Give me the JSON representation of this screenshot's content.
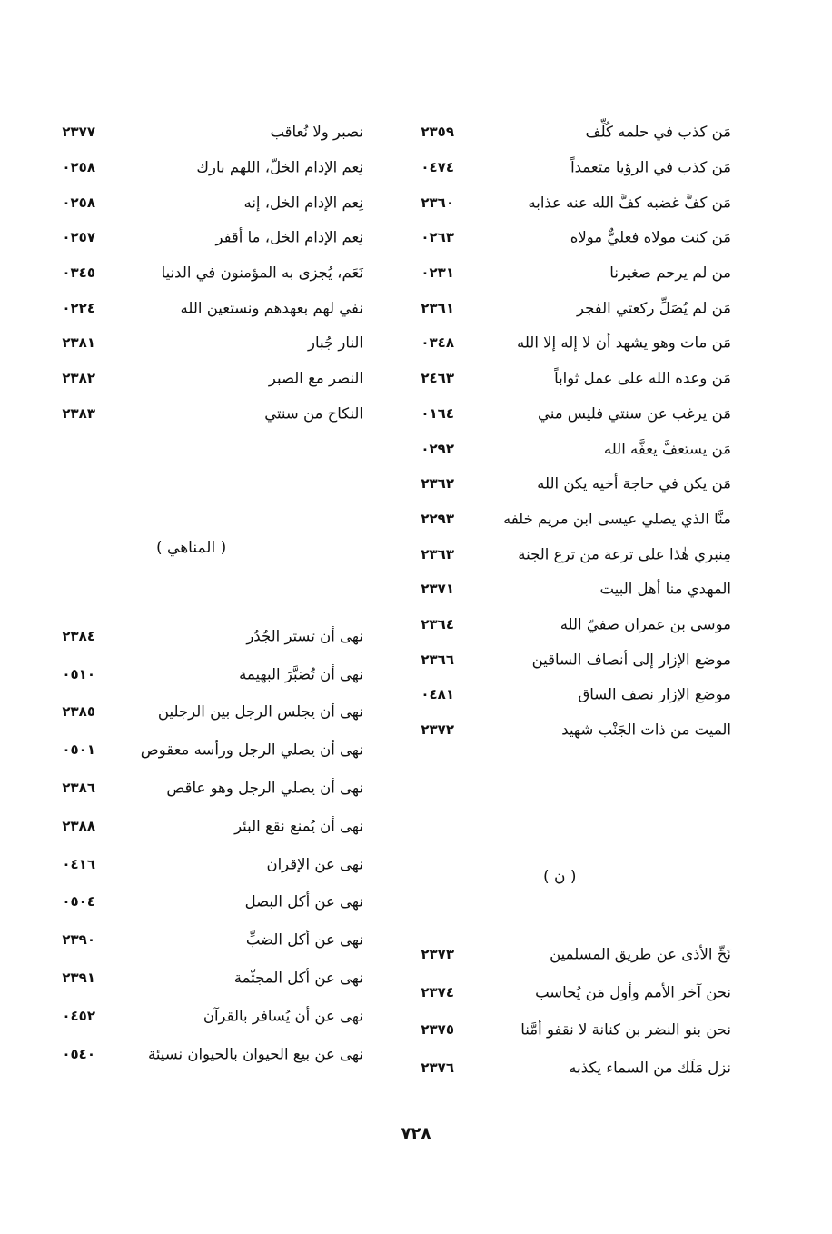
{
  "right_column": {
    "top_entries": [
      {
        "text": "مَن كذب في حلمه كُلِّف",
        "num": "٢٣٥٩"
      },
      {
        "text": "مَن كذب في الرؤيا متعمداً",
        "num": "٠٤٧٤"
      },
      {
        "text": "مَن كفَّ غضبه كفَّ الله عنه عذابه",
        "num": "٢٣٦٠"
      },
      {
        "text": "مَن كنت مولاه فعليٌّ مولاه",
        "num": "٠٢٦٣"
      },
      {
        "text": "من لم يرحم صغيرنا",
        "num": "٠٢٣١"
      },
      {
        "text": "مَن لم يُصَلِّ ركعتي الفجر",
        "num": "٢٣٦١"
      },
      {
        "text": "مَن مات وهو يشهد أن لا إله إلا الله",
        "num": "٠٣٤٨"
      },
      {
        "text": "مَن وعده الله على عمل ثواباً",
        "num": "٢٤٦٣"
      },
      {
        "text": "مَن يرغب عن سنتي فليس مني",
        "num": "٠١٦٤"
      },
      {
        "text": "مَن يستعفَّ يعفَّه الله",
        "num": "٠٢٩٢"
      },
      {
        "text": "مَن يكن في حاجة أخيه يكن الله",
        "num": "٢٣٦٢"
      },
      {
        "text": "منَّا الذي يصلي عيسى ابن مريم خلفه",
        "num": "٢٢٩٣"
      },
      {
        "text": "مِنبري هٰذا على ترعة من ترع الجنة",
        "num": "٢٣٦٣"
      },
      {
        "text": "المهدي منا أهل البيت",
        "num": "٢٣٧١"
      },
      {
        "text": "موسى بن عمران صفيّ الله",
        "num": "٢٣٦٤"
      },
      {
        "text": "موضع الإزار إلى أنصاف الساقين",
        "num": "٢٣٦٦"
      },
      {
        "text": "موضع الإزار نصف الساق",
        "num": "٠٤٨١"
      },
      {
        "text": "الميت من ذات الجَنْب شهيد",
        "num": "٢٣٧٢"
      }
    ],
    "heading": "( ن )",
    "bottom_entries": [
      {
        "text": "نَحِّ الأذى عن طريق المسلمين",
        "num": "٢٣٧٣"
      },
      {
        "text": "نحن آخر الأمم وأول مَن يُحاسب",
        "num": "٢٣٧٤"
      },
      {
        "text": "نحن بنو النضر بن كنانة لا نقفو أمَّنا",
        "num": "٢٣٧٥"
      },
      {
        "text": "نزل مَلَك من السماء يكذبه",
        "num": "٢٣٧٦"
      }
    ]
  },
  "left_column": {
    "top_entries": [
      {
        "text": "نصبر ولا نُعاقب",
        "num": "٢٣٧٧"
      },
      {
        "text": "نِعم الإدام الخلّ، اللهم بارك",
        "num": "٠٢٥٨"
      },
      {
        "text": "نِعم الإدام الخل، إنه",
        "num": "٠٢٥٨"
      },
      {
        "text": "نِعم الإدام الخل، ما أقفر",
        "num": "٠٢٥٧"
      },
      {
        "text": "نَعَم، يُجزى به المؤمنون في الدنيا",
        "num": "٠٣٤٥"
      },
      {
        "text": "نفي لهم بعهدهم ونستعين الله",
        "num": "٠٢٢٤"
      },
      {
        "text": "النار جُبار",
        "num": "٢٣٨١"
      },
      {
        "text": "النصر مع الصبر",
        "num": "٢٣٨٢"
      },
      {
        "text": "النكاح من سنتي",
        "num": "٢٣٨٣"
      }
    ],
    "heading": "( المناهي )",
    "bottom_entries": [
      {
        "text": "نهى أن تستر الجُدُر",
        "num": "٢٣٨٤"
      },
      {
        "text": "نهى أن تُصَبَّرَ البهيمة",
        "num": "٠٥١٠"
      },
      {
        "text": "نهى أن يجلس الرجل بين الرجلين",
        "num": "٢٣٨٥"
      },
      {
        "text": "نهى أن يصلي الرجل ورأسه معقوص",
        "num": "٠٥٠١"
      },
      {
        "text": "نهى أن يصلي الرجل وهو عاقص",
        "num": "٢٣٨٦"
      },
      {
        "text": "نهى أن يُمنع نقع البئر",
        "num": "٢٣٨٨"
      },
      {
        "text": "نهى عن الإقران",
        "num": "٠٤١٦"
      },
      {
        "text": "نهى عن أكل البصل",
        "num": "٠٥٠٤"
      },
      {
        "text": "نهى عن أكل الضبِّ",
        "num": "٢٣٩٠"
      },
      {
        "text": "نهى عن أكل المجثّمة",
        "num": "٢٣٩١"
      },
      {
        "text": "نهى عن أن يُسافر بالقرآن",
        "num": "٠٤٥٢"
      },
      {
        "text": "نهى عن بيع الحيوان بالحيوان نسيئة",
        "num": "٠٥٤٠"
      }
    ]
  },
  "page_number": "٧٢٨"
}
